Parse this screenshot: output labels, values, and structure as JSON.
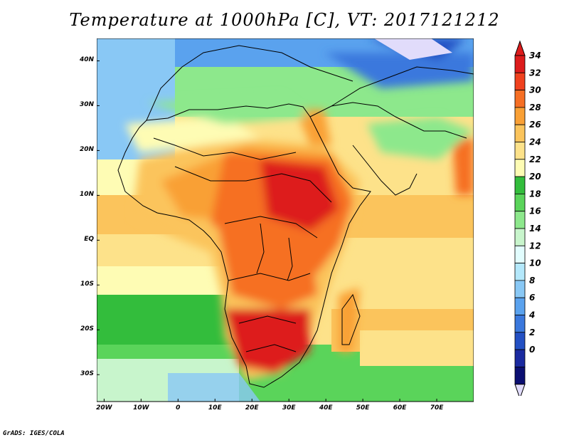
{
  "title": "Temperature at 1000hPa [C], VT: 2017121212",
  "credit": "GrADS: IGES/COLA",
  "map": {
    "lon_ticks": [
      "20W",
      "10W",
      "0",
      "10E",
      "20E",
      "30E",
      "40E",
      "50E",
      "60E",
      "70E"
    ],
    "lat_ticks": [
      "40N",
      "30N",
      "20N",
      "10N",
      "EQ",
      "10S",
      "20S",
      "30S"
    ],
    "lon_range": [
      -22,
      80
    ],
    "lat_range": [
      -36,
      45
    ]
  },
  "colorbar": {
    "levels": [
      "34",
      "32",
      "30",
      "28",
      "26",
      "24",
      "22",
      "20",
      "18",
      "16",
      "14",
      "12",
      "10",
      "8",
      "6",
      "4",
      "2",
      "0"
    ],
    "colors": [
      "#dd1c1c",
      "#f0411e",
      "#f66f24",
      "#f9a035",
      "#fbc45c",
      "#fde28a",
      "#fefcb4",
      "#33bd3c",
      "#5ad45a",
      "#8de88c",
      "#c8f5cc",
      "#e2fdfe",
      "#b4e8fb",
      "#89c8f5",
      "#5aa2ee",
      "#3a78dd",
      "#2350c3",
      "#1a2aa0",
      "#0b0f72"
    ],
    "top_arrow_color": "#dd1c1c",
    "bottom_arrow_color": "#e1dcfb"
  }
}
